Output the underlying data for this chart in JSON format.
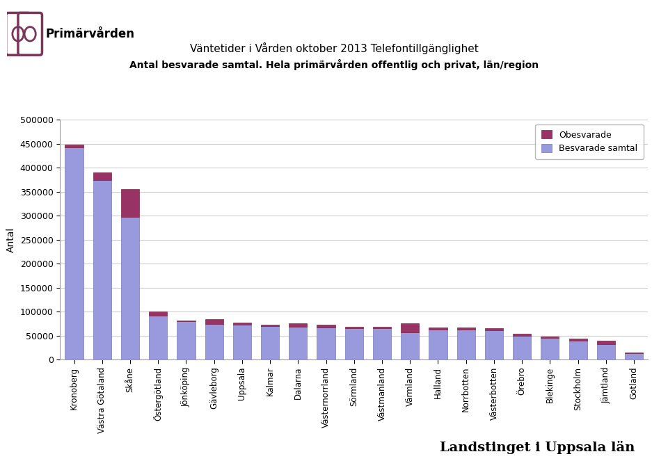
{
  "categories": [
    "Kronoberg",
    "Västra Götaland",
    "Skåne",
    "Östergötland",
    "Jönköping",
    "Gävleborg",
    "Uppsala",
    "Kalmar",
    "Dalarna",
    "Västernorrland",
    "Sörmland",
    "Västmanland",
    "Värmland",
    "Halland",
    "Norrbotten",
    "Västerbotten",
    "Örebro",
    "Blekinge",
    "Stockholm",
    "Jämtland",
    "Gotland"
  ],
  "besvarade": [
    443000,
    375000,
    297000,
    92000,
    80000,
    74000,
    72000,
    70000,
    68000,
    67000,
    66000,
    65000,
    57000,
    63000,
    62000,
    61000,
    50000,
    45000,
    40000,
    32000,
    13000
  ],
  "obesvarade": [
    5000,
    16000,
    58000,
    8000,
    2000,
    10000,
    5000,
    3000,
    7000,
    5000,
    3000,
    3000,
    18000,
    4000,
    5000,
    5000,
    4000,
    3000,
    3000,
    8000,
    1000
  ],
  "color_besvarade": "#9999DD",
  "color_obesvarade": "#993366",
  "title_line1": "Väntetider i Vården oktober 2013 Telefontillgänglighet",
  "title_line2": "Antal besvarade samtal. Hela primärvården offentlig och privat, län/region",
  "ylabel": "Antal",
  "ylim": [
    0,
    500000
  ],
  "yticks": [
    0,
    50000,
    100000,
    150000,
    200000,
    250000,
    300000,
    350000,
    400000,
    450000,
    500000
  ],
  "legend_obesvarade": "Obesvarade",
  "legend_besvarade": "Besvarade samtal",
  "footer_text": "Landstinget i Uppsala län",
  "bg_color": "#FFFFFF",
  "plot_bg_color": "#FFFFFF",
  "grid_color": "#CCCCCC",
  "logo_color": "#7B3558",
  "header_bg": "#FFFFFF"
}
